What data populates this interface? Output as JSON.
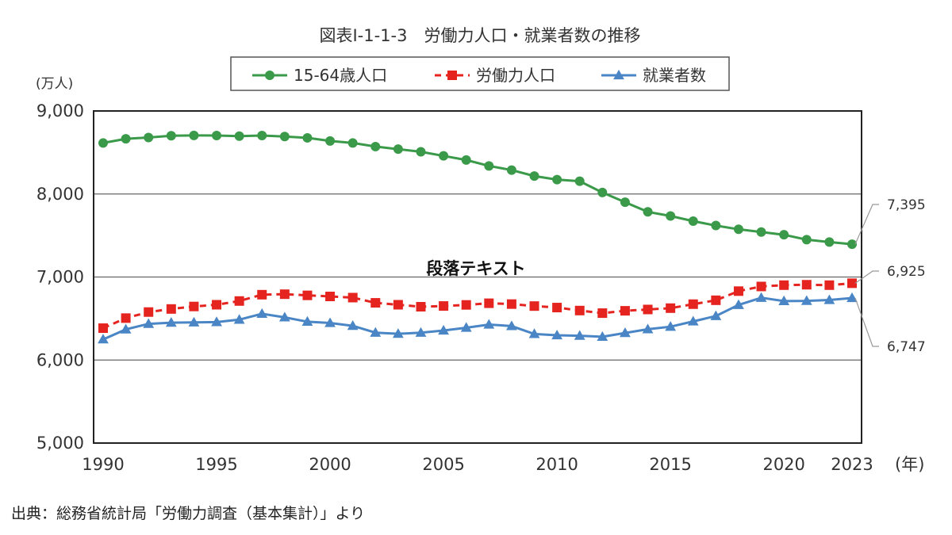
{
  "chart_data": {
    "type": "line",
    "title": "図表Ⅰ-1-1-3　労働力人口・就業者数の推移",
    "y_unit_label": "(万人)",
    "x_unit_label": "(年)",
    "ylim": [
      5000,
      9000
    ],
    "y_ticks": [
      {
        "value": 5000,
        "label": "5,000"
      },
      {
        "value": 6000,
        "label": "6,000"
      },
      {
        "value": 7000,
        "label": "7,000"
      },
      {
        "value": 8000,
        "label": "8,000"
      },
      {
        "value": 9000,
        "label": "9,000"
      }
    ],
    "xlim": [
      1990,
      2023
    ],
    "x_ticks": [
      {
        "value": 1990,
        "label": "1990"
      },
      {
        "value": 1995,
        "label": "1995"
      },
      {
        "value": 2000,
        "label": "2000"
      },
      {
        "value": 2005,
        "label": "2005"
      },
      {
        "value": 2010,
        "label": "2010"
      },
      {
        "value": 2015,
        "label": "2015"
      },
      {
        "value": 2020,
        "label": "2020"
      },
      {
        "value": 2023,
        "label": "2023"
      }
    ],
    "x": [
      1990,
      1991,
      1992,
      1993,
      1994,
      1995,
      1996,
      1997,
      1998,
      1999,
      2000,
      2001,
      2002,
      2003,
      2004,
      2005,
      2006,
      2007,
      2008,
      2009,
      2010,
      2011,
      2012,
      2013,
      2014,
      2015,
      2016,
      2017,
      2018,
      2019,
      2020,
      2021,
      2022,
      2023
    ],
    "series": [
      {
        "name": "15-64歳人口",
        "color": "#3a9a4a",
        "marker": "circle",
        "dash": "solid",
        "values": [
          8614,
          8665,
          8680,
          8702,
          8705,
          8704,
          8697,
          8704,
          8692,
          8676,
          8638,
          8614,
          8571,
          8540,
          8508,
          8459,
          8409,
          8338,
          8288,
          8216,
          8173,
          8154,
          8018,
          7901,
          7785,
          7735,
          7673,
          7620,
          7575,
          7542,
          7509,
          7450,
          7421,
          7395
        ],
        "end_label": "7,395"
      },
      {
        "name": "労働力人口",
        "color": "#e52420",
        "marker": "square",
        "dash": "dashed",
        "values": [
          6384,
          6505,
          6578,
          6615,
          6645,
          6666,
          6711,
          6787,
          6793,
          6779,
          6766,
          6752,
          6689,
          6666,
          6642,
          6651,
          6664,
          6684,
          6674,
          6650,
          6632,
          6596,
          6565,
          6593,
          6609,
          6625,
          6673,
          6720,
          6830,
          6886,
          6902,
          6907,
          6902,
          6925
        ],
        "end_label": "6,925"
      },
      {
        "name": "就業者数",
        "color": "#4a86c5",
        "marker": "triangle",
        "dash": "solid",
        "values": [
          6249,
          6369,
          6436,
          6450,
          6453,
          6457,
          6486,
          6557,
          6514,
          6462,
          6446,
          6412,
          6330,
          6316,
          6329,
          6356,
          6389,
          6427,
          6409,
          6314,
          6298,
          6293,
          6280,
          6326,
          6371,
          6401,
          6465,
          6530,
          6664,
          6750,
          6710,
          6713,
          6723,
          6747
        ],
        "end_label": "6,747"
      }
    ],
    "overlay_text": "段落テキスト"
  },
  "source": "出典：総務省統計局「労働力調査（基本集計）」より"
}
